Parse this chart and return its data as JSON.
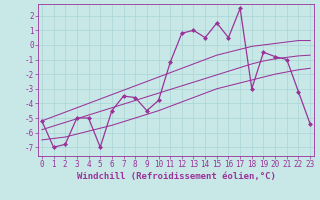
{
  "x": [
    0,
    1,
    2,
    3,
    4,
    5,
    6,
    7,
    8,
    9,
    10,
    11,
    12,
    13,
    14,
    15,
    16,
    17,
    18,
    19,
    20,
    21,
    22,
    23
  ],
  "y_main": [
    -5.2,
    -7.0,
    -6.8,
    -5.0,
    -5.0,
    -7.0,
    -4.5,
    -3.5,
    -3.6,
    -4.5,
    -3.8,
    -1.2,
    0.8,
    1.0,
    0.5,
    1.5,
    0.5,
    2.5,
    -3.0,
    -0.5,
    -0.8,
    -1.0,
    -3.2,
    -5.4
  ],
  "y_upper_trend": [
    -5.2,
    -4.9,
    -4.6,
    -4.3,
    -4.0,
    -3.7,
    -3.4,
    -3.1,
    -2.8,
    -2.5,
    -2.2,
    -1.9,
    -1.6,
    -1.3,
    -1.0,
    -0.7,
    -0.5,
    -0.3,
    -0.1,
    0.0,
    0.1,
    0.2,
    0.3,
    0.3
  ],
  "y_mid_trend": [
    -5.8,
    -5.55,
    -5.3,
    -5.05,
    -4.8,
    -4.55,
    -4.3,
    -4.05,
    -3.8,
    -3.55,
    -3.3,
    -3.05,
    -2.8,
    -2.55,
    -2.3,
    -2.05,
    -1.8,
    -1.55,
    -1.3,
    -1.1,
    -0.95,
    -0.85,
    -0.75,
    -0.7
  ],
  "y_lower_trend": [
    -6.5,
    -6.4,
    -6.3,
    -6.1,
    -5.9,
    -5.7,
    -5.5,
    -5.25,
    -5.0,
    -4.75,
    -4.5,
    -4.2,
    -3.9,
    -3.6,
    -3.3,
    -3.0,
    -2.8,
    -2.6,
    -2.4,
    -2.2,
    -2.0,
    -1.85,
    -1.7,
    -1.6
  ],
  "color": "#993399",
  "bg_color": "#c8e8e8",
  "grid_color": "#aad4d4",
  "ylim": [
    -7.6,
    2.8
  ],
  "xlim": [
    -0.3,
    23.3
  ],
  "yticks": [
    -7,
    -6,
    -5,
    -4,
    -3,
    -2,
    -1,
    0,
    1,
    2
  ],
  "xticks": [
    0,
    1,
    2,
    3,
    4,
    5,
    6,
    7,
    8,
    9,
    10,
    11,
    12,
    13,
    14,
    15,
    16,
    17,
    18,
    19,
    20,
    21,
    22,
    23
  ],
  "xlabel": "Windchill (Refroidissement éolien,°C)",
  "xlabel_fontsize": 6.5,
  "tick_fontsize": 5.5,
  "line_width": 0.9,
  "marker": "D",
  "marker_size": 2.0
}
